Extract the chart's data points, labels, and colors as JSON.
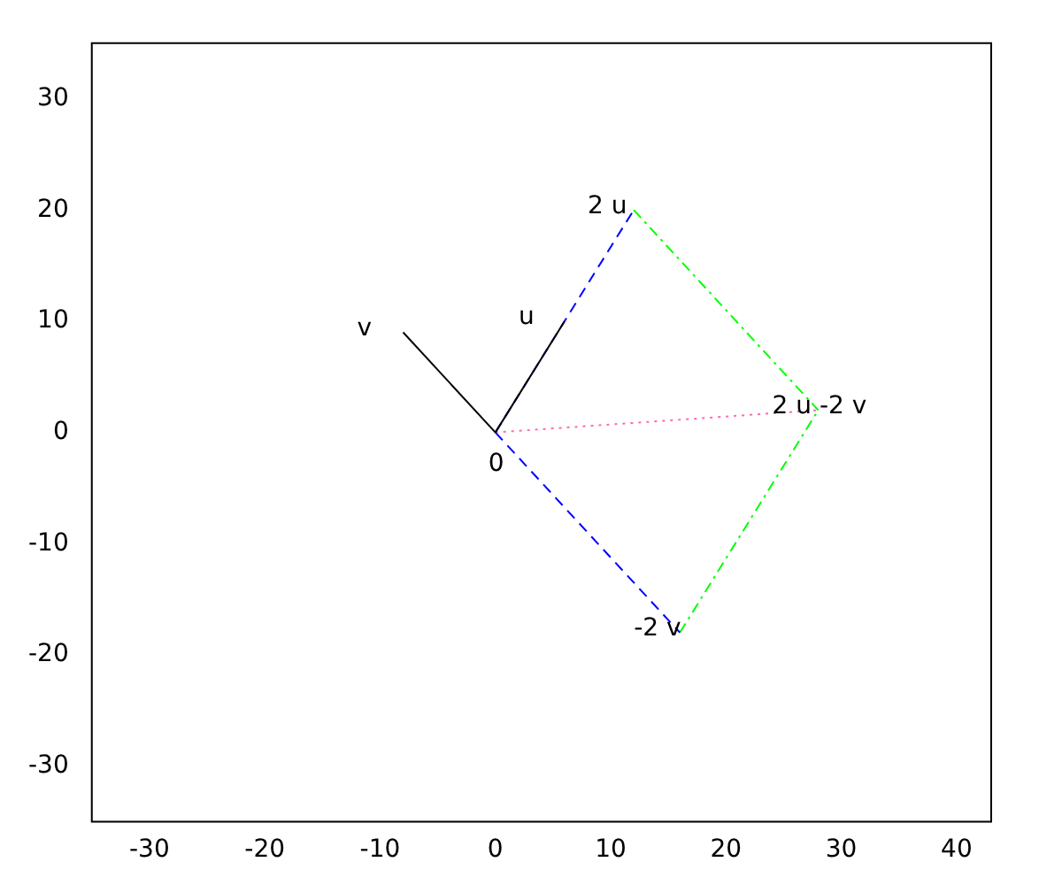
{
  "chart_data": {
    "type": "line",
    "xlim": [
      -35,
      43
    ],
    "ylim": [
      -35,
      35
    ],
    "xticks": [
      -30,
      -20,
      -10,
      0,
      10,
      20,
      30,
      40
    ],
    "yticks": [
      -30,
      -20,
      -10,
      0,
      10,
      20,
      30
    ],
    "grid": false,
    "legend": false,
    "marker": "none",
    "series": [
      {
        "color": "#000000",
        "x": [
          0,
          6
        ],
        "values": [
          0,
          10
        ],
        "line_style": "solid"
      },
      {
        "color": "#000000",
        "x": [
          0,
          -8
        ],
        "values": [
          0,
          9
        ],
        "line_style": "solid"
      },
      {
        "color": "#0000ff",
        "x": [
          0,
          12
        ],
        "values": [
          0,
          20
        ],
        "line_style": "dashed"
      },
      {
        "color": "#0000ff",
        "x": [
          0,
          16
        ],
        "values": [
          0,
          -18
        ],
        "line_style": "dashed"
      },
      {
        "color": "#00ff00",
        "x": [
          12,
          28
        ],
        "values": [
          20,
          2
        ],
        "line_style": "dashdot"
      },
      {
        "color": "#00ff00",
        "x": [
          16,
          28
        ],
        "values": [
          -18,
          2
        ],
        "line_style": "dashdot"
      },
      {
        "color": "#ff69b4",
        "x": [
          0,
          28
        ],
        "values": [
          0,
          2
        ],
        "line_style": "dotted"
      }
    ],
    "annotations": [
      {
        "text": "0",
        "x": 0,
        "y": 0
      },
      {
        "text": "u",
        "x": 6,
        "y": 10
      },
      {
        "text": "v",
        "x": -8,
        "y": 9
      },
      {
        "text": "2 u",
        "x": 12,
        "y": 20
      },
      {
        "text": "-2 v",
        "x": 16,
        "y": -18
      },
      {
        "text": "2 u -2 v",
        "x": 28,
        "y": 2
      }
    ]
  }
}
